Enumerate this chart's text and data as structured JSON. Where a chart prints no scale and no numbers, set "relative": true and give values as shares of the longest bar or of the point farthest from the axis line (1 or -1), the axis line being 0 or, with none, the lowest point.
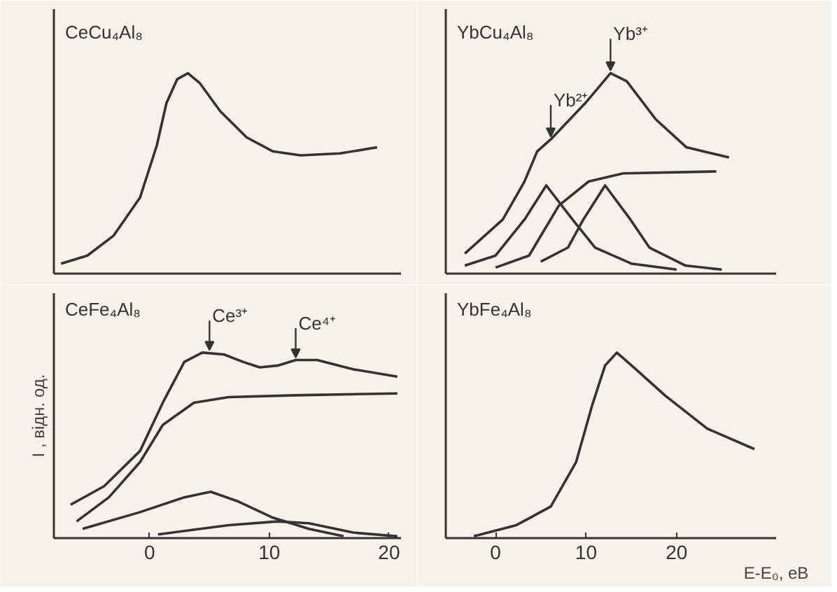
{
  "chart_data": [
    {
      "type": "line",
      "title": "CeCu₄Al₈",
      "relative": true,
      "xlim": [
        -8,
        21
      ],
      "tick_labels": false,
      "grid": false,
      "series": [
        {
          "color": "#333333",
          "x": [
            -7.4,
            -5.2,
            -3,
            -0.8,
            0.6,
            1.4,
            2.3,
            3.2,
            4.2,
            5.9,
            8.1,
            10.3,
            12.6,
            15.9,
            19
          ],
          "values": [
            0.05,
            0.09,
            0.19,
            0.38,
            0.64,
            0.85,
            0.97,
            1,
            0.95,
            0.81,
            0.68,
            0.61,
            0.59,
            0.6,
            0.63
          ]
        }
      ]
    },
    {
      "type": "line",
      "title": "CeFe₄Al₈",
      "ylabel": "I , відн. од.",
      "relative": true,
      "xlim": [
        -8,
        21
      ],
      "xticks": [
        0,
        10,
        20
      ],
      "tick_labels": "x",
      "grid": false,
      "annotations": [
        {
          "text": "Ce³⁺",
          "x": 5,
          "y": 1.0
        },
        {
          "text": "Ce⁴⁺",
          "x": 12.2,
          "y": 0.96
        }
      ],
      "series": [
        {
          "color": "#333333",
          "x": [
            -6.6,
            -3.8,
            -0.8,
            1.1,
            2.9,
            4.4,
            6.2,
            7.8,
            9.2,
            10.7,
            12.2,
            14,
            17,
            20.7
          ],
          "values": [
            0.18,
            0.28,
            0.47,
            0.73,
            0.95,
            1,
            0.99,
            0.95,
            0.92,
            0.93,
            0.96,
            0.96,
            0.91,
            0.87
          ]
        },
        {
          "color": "#333333",
          "x": [
            -6.1,
            -3.4,
            -0.8,
            1.1,
            3.7,
            6.6,
            12.2,
            20.7
          ],
          "values": [
            0.09,
            0.22,
            0.41,
            0.61,
            0.73,
            0.76,
            0.77,
            0.78
          ]
        },
        {
          "color": "#333333",
          "x": [
            -5.6,
            -0.8,
            2.9,
            5.1,
            7.3,
            10.3,
            13.3,
            16.2
          ],
          "values": [
            0.05,
            0.14,
            0.22,
            0.25,
            0.2,
            0.11,
            0.05,
            0.01
          ]
        },
        {
          "color": "#333333",
          "x": [
            0.7,
            6.6,
            10.7,
            13.3,
            17,
            20.7
          ],
          "values": [
            0.02,
            0.07,
            0.09,
            0.08,
            0.03,
            0.01
          ]
        }
      ]
    },
    {
      "type": "line",
      "title": "YbCu₄Al₈",
      "relative": true,
      "xlim": [
        -5.5,
        31
      ],
      "tick_labels": false,
      "grid": false,
      "annotations": [
        {
          "text": "Yb²⁺",
          "x": 6.1,
          "y": 0.67
        },
        {
          "text": "Yb³⁺",
          "x": 12.7,
          "y": 1.0
        }
      ],
      "series": [
        {
          "color": "#333333",
          "x": [
            -3.4,
            0.8,
            3.2,
            4.6,
            6.1,
            9.9,
            12.7,
            14.5,
            17.7,
            21.1,
            25.8
          ],
          "values": [
            0.1,
            0.27,
            0.46,
            0.61,
            0.67,
            0.85,
            1,
            0.96,
            0.77,
            0.63,
            0.58
          ]
        },
        {
          "color": "#333333",
          "x": [
            -3.4,
            0,
            3.2,
            5.6,
            8.5,
            11,
            15,
            20
          ],
          "values": [
            0.04,
            0.09,
            0.27,
            0.44,
            0.27,
            0.13,
            0.05,
            0.02
          ]
        },
        {
          "color": "#333333",
          "x": [
            5,
            8,
            9.7,
            12.1,
            14.9,
            17,
            21,
            25
          ],
          "values": [
            0.06,
            0.13,
            0.27,
            0.44,
            0.27,
            0.13,
            0.04,
            0.02
          ]
        },
        {
          "color": "#333333",
          "x": [
            0,
            3.7,
            7,
            10.3,
            14.1,
            24.4
          ],
          "values": [
            0.03,
            0.09,
            0.34,
            0.46,
            0.5,
            0.51
          ]
        }
      ]
    },
    {
      "type": "line",
      "title": "YbFe₄Al₈",
      "xlabel": "E-E₀, еВ",
      "relative": true,
      "xlim": [
        -5.5,
        31
      ],
      "xticks": [
        0,
        10,
        20
      ],
      "tick_labels": "x",
      "grid": false,
      "series": [
        {
          "color": "#333333",
          "x": [
            -2.4,
            2.3,
            6.1,
            8.9,
            10.7,
            12.1,
            13.4,
            15.5,
            18.7,
            23.4,
            28.6
          ],
          "values": [
            0.01,
            0.07,
            0.17,
            0.41,
            0.72,
            0.93,
            1,
            0.91,
            0.77,
            0.59,
            0.48
          ]
        }
      ]
    }
  ]
}
